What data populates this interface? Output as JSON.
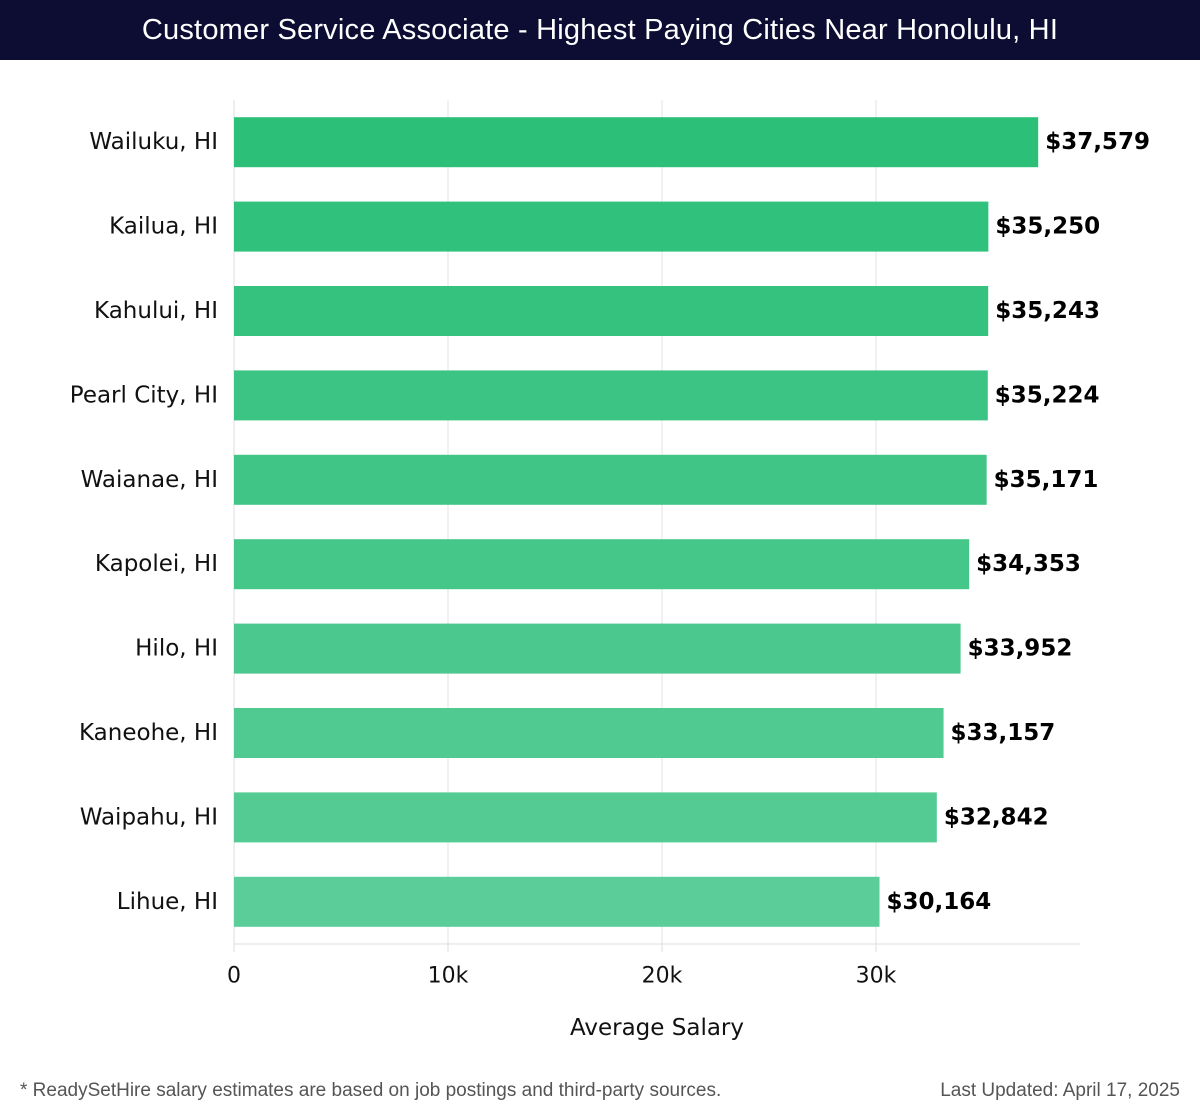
{
  "header": {
    "title": "Customer Service Associate - Highest Paying Cities Near Honolulu, HI"
  },
  "footer": {
    "note": "* ReadySetHire salary estimates are based on job postings and third-party sources.",
    "updated": "Last Updated: April 17, 2025"
  },
  "colors": {
    "header_bg": "#0d0d33",
    "bar_top": "#2bbf78",
    "bar_bottom": "#5acd98",
    "grid": "#e3e3e3"
  },
  "chart_data": {
    "type": "bar",
    "orientation": "horizontal",
    "title": "Customer Service Associate - Highest Paying Cities Near Honolulu, HI",
    "categories": [
      "Wailuku, HI",
      "Kailua, HI",
      "Kahului, HI",
      "Pearl City, HI",
      "Waianae, HI",
      "Kapolei, HI",
      "Hilo, HI",
      "Kaneohe, HI",
      "Waipahu, HI",
      "Lihue, HI"
    ],
    "values": [
      37579,
      35250,
      35243,
      35224,
      35171,
      34353,
      33952,
      33157,
      32842,
      30164
    ],
    "value_labels": [
      "$37,579",
      "$35,250",
      "$35,243",
      "$35,224",
      "$35,171",
      "$34,353",
      "$33,952",
      "$33,157",
      "$32,842",
      "$30,164"
    ],
    "xlabel": "Average Salary",
    "ylabel": "",
    "xlim": [
      0,
      39500
    ],
    "xticks": [
      0,
      10000,
      20000,
      30000
    ],
    "xtick_labels": [
      "0",
      "10k",
      "20k",
      "30k"
    ],
    "grid": true
  }
}
